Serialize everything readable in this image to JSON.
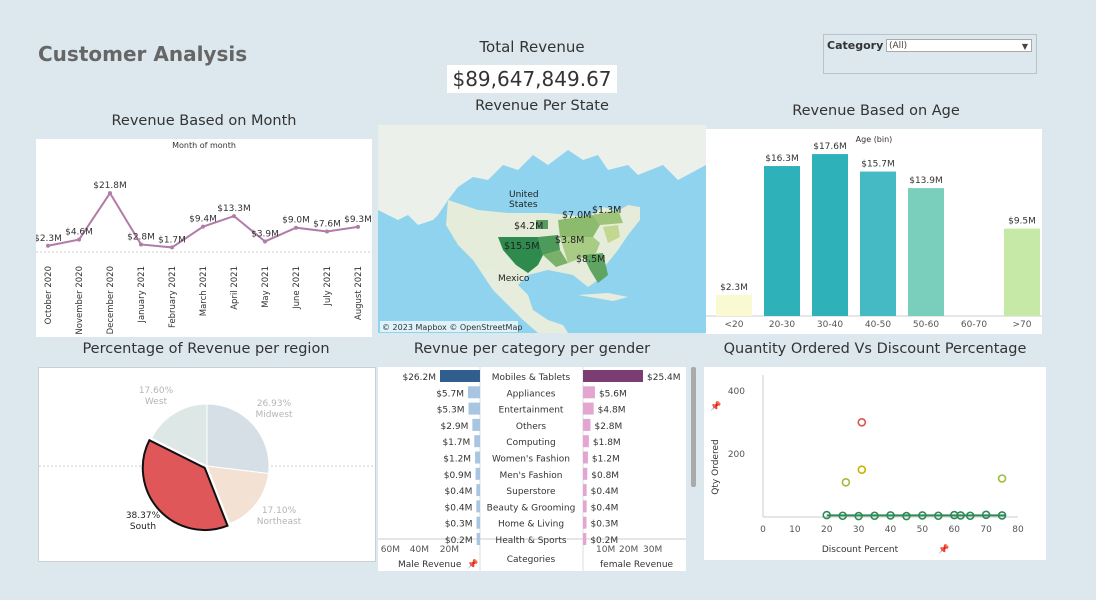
{
  "dashboard": {
    "title": "Customer Analysis",
    "total_revenue_title": "Total Revenue",
    "total_revenue_value": "$89,647,849.67",
    "filter": {
      "label": "Category",
      "value": "(All)"
    }
  },
  "month_chart": {
    "title": "Revenue Based on Month",
    "subtitle": "Month of month",
    "chart_data": {
      "type": "line",
      "categories": [
        "October 2020",
        "November 2020",
        "December 2020",
        "January 2021",
        "February 2021",
        "March 2021",
        "April 2021",
        "May 2021",
        "June 2021",
        "July 2021",
        "August 2021"
      ],
      "values": [
        2.3,
        4.6,
        21.8,
        2.8,
        1.7,
        9.4,
        13.3,
        3.9,
        9.0,
        7.6,
        9.3
      ],
      "labels": [
        "$2.3M",
        "$4.6M",
        "$21.8M",
        "$2.8M",
        "$1.7M",
        "$9.4M",
        "$13.3M",
        "$3.9M",
        "$9.0M",
        "$7.6M",
        "$9.3M"
      ],
      "color": "#b27ba8"
    }
  },
  "map": {
    "title": "Revenue Per State",
    "labels": {
      "us": "United\nStates",
      "mexico": "Mexico"
    },
    "state_values": [
      "$7.0M",
      "$1.3M",
      "$4.2M",
      "$15.5M",
      "$3.8M",
      "$8.5M"
    ],
    "credit": "© 2023 Mapbox © OpenStreetMap"
  },
  "age_chart": {
    "title": "Revenue Based on Age",
    "subtitle": "Age (bin)",
    "chart_data": {
      "type": "bar",
      "categories": [
        "<20",
        "20-30",
        "30-40",
        "40-50",
        "50-60",
        "60-70",
        ">70"
      ],
      "values": [
        2.3,
        16.3,
        17.6,
        15.7,
        13.9,
        null,
        9.5
      ],
      "labels": [
        "$2.3M",
        "$16.3M",
        "$17.6M",
        "$15.7M",
        "$13.9M",
        "",
        "$9.5M"
      ],
      "colors": [
        "#fafad2",
        "#2eb1b9",
        "#2eb1b9",
        "#45bac4",
        "#79cfbc",
        "#ffffff",
        "#c6e9a7"
      ]
    }
  },
  "region_chart": {
    "title": "Percentage of Revenue per region",
    "chart_data": {
      "type": "pie",
      "slices": [
        {
          "name": "Midwest",
          "percent": 26.93,
          "label": "26.93%",
          "color": "#d6dfe6"
        },
        {
          "name": "Northeast",
          "percent": 17.1,
          "label": "17.10%",
          "color": "#f3e2d4"
        },
        {
          "name": "South",
          "percent": 38.37,
          "label": "38.37%",
          "color": "#e0575a"
        },
        {
          "name": "West",
          "percent": 17.6,
          "label": "17.60%",
          "color": "#dde8e6"
        }
      ]
    }
  },
  "gender_chart": {
    "title": "Revnue per category per gender",
    "axis_titles": {
      "male": "Male Revenue",
      "categories": "Categories",
      "female": "female Revenue"
    },
    "male_ticks": [
      "60M",
      "40M",
      "20M"
    ],
    "female_ticks": [
      "10M",
      "20M",
      "30M"
    ],
    "chart_data": {
      "type": "bar",
      "categories": [
        "Mobiles & Tablets",
        "Appliances",
        "Entertainment",
        "Others",
        "Computing",
        "Women's Fashion",
        "Men's Fashion",
        "Superstore",
        "Beauty & Grooming",
        "Home & Living",
        "Health & Sports"
      ],
      "series": [
        {
          "name": "Male Revenue",
          "values": [
            26.2,
            5.7,
            5.3,
            2.9,
            1.7,
            1.2,
            0.9,
            0.4,
            0.4,
            0.3,
            0.2
          ],
          "labels": [
            "$26.2M",
            "$5.7M",
            "$5.3M",
            "$2.9M",
            "$1.7M",
            "$1.2M",
            "$0.9M",
            "$0.4M",
            "$0.4M",
            "$0.3M",
            "$0.2M"
          ]
        },
        {
          "name": "female Revenue",
          "values": [
            25.4,
            5.6,
            4.8,
            2.8,
            1.8,
            1.2,
            0.8,
            0.4,
            0.4,
            0.3,
            0.2
          ],
          "labels": [
            "$25.4M",
            "$5.6M",
            "$4.8M",
            "$2.8M",
            "$1.8M",
            "$1.2M",
            "$0.8M",
            "$0.4M",
            "$0.4M",
            "$0.3M",
            "$0.2M"
          ]
        }
      ]
    }
  },
  "scatter_chart": {
    "title": "Quantity Ordered  Vs Discount Percentage",
    "chart_data": {
      "type": "scatter",
      "xlabel": "Discount Percent",
      "ylabel": "Qty Ordered",
      "xlim": [
        0,
        80
      ],
      "ylim": [
        0,
        450
      ],
      "x_ticks": [
        "0",
        "10",
        "20",
        "30",
        "40",
        "50",
        "60",
        "70",
        "80"
      ],
      "y_ticks": [
        "200",
        "400"
      ],
      "points": [
        {
          "x": 31,
          "y": 300,
          "color": "#d9534f"
        },
        {
          "x": 31,
          "y": 150,
          "color": "#c8b400"
        },
        {
          "x": 26,
          "y": 110,
          "color": "#9bbd3a"
        },
        {
          "x": 75,
          "y": 122,
          "color": "#9bbd3a"
        },
        {
          "x": 20,
          "y": 6,
          "color": "#2e8b57"
        },
        {
          "x": 25,
          "y": 4,
          "color": "#2e8b57"
        },
        {
          "x": 30,
          "y": 3,
          "color": "#2e8b57"
        },
        {
          "x": 35,
          "y": 4,
          "color": "#2e8b57"
        },
        {
          "x": 40,
          "y": 5,
          "color": "#2e8b57"
        },
        {
          "x": 45,
          "y": 3,
          "color": "#2e8b57"
        },
        {
          "x": 50,
          "y": 5,
          "color": "#2e8b57"
        },
        {
          "x": 55,
          "y": 4,
          "color": "#2e8b57"
        },
        {
          "x": 60,
          "y": 6,
          "color": "#2e8b57"
        },
        {
          "x": 62,
          "y": 5,
          "color": "#2e8b57"
        },
        {
          "x": 65,
          "y": 4,
          "color": "#2e8b57"
        },
        {
          "x": 70,
          "y": 7,
          "color": "#2e8b57"
        },
        {
          "x": 75,
          "y": 5,
          "color": "#2e8b57"
        }
      ]
    }
  }
}
